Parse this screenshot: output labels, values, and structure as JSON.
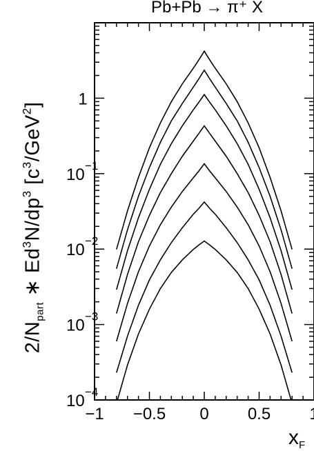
{
  "chart_data": {
    "type": "line",
    "title": "Pb+Pb → π⁺ X",
    "ylabel": {
      "prefix": "2/N",
      "sub": "part",
      "mid": " ∗ Ed",
      "sup3": "3",
      "mid2": "N/dp",
      "sup3b": "3",
      "units": "  [c",
      "sup_units": "3",
      "units_end": "/GeV",
      "sup_units2": "2",
      "close": "]"
    },
    "xlabel": {
      "main": "x",
      "sub": "F"
    },
    "xlim": [
      -1,
      1
    ],
    "ylim": [
      0.0001,
      10
    ],
    "yscale": "log",
    "x_ticks": [
      {
        "value": -1,
        "label": "−1"
      },
      {
        "value": -0.5,
        "label": "−0.5"
      },
      {
        "value": 0,
        "label": "0"
      },
      {
        "value": 0.5,
        "label": "0.5"
      },
      {
        "value": 1,
        "label": "1"
      }
    ],
    "y_ticks": [
      {
        "value": 0.0001,
        "base": "10",
        "exp": "−4"
      },
      {
        "value": 0.001,
        "base": "10",
        "exp": "−3"
      },
      {
        "value": 0.01,
        "base": "10",
        "exp": "−2"
      },
      {
        "value": 0.1,
        "base": "10",
        "exp": "−1"
      },
      {
        "value": 1,
        "base": "1",
        "exp": ""
      }
    ],
    "x": [
      -0.8,
      -0.7,
      -0.6,
      -0.5,
      -0.4,
      -0.3,
      -0.2,
      -0.1,
      -0.05,
      0,
      0.05,
      0.1,
      0.2,
      0.3,
      0.4,
      0.5,
      0.6,
      0.7,
      0.8
    ],
    "series": [
      {
        "values": [
          0.0099,
          0.032,
          0.089,
          0.22,
          0.47,
          0.9,
          1.55,
          2.5,
          3.2,
          4.2,
          3.2,
          2.5,
          1.55,
          0.9,
          0.47,
          0.22,
          0.089,
          0.032,
          0.0099
        ]
      },
      {
        "values": [
          0.0055,
          0.018,
          0.05,
          0.12,
          0.26,
          0.5,
          0.85,
          1.4,
          1.8,
          2.35,
          1.8,
          1.4,
          0.85,
          0.5,
          0.26,
          0.12,
          0.05,
          0.018,
          0.0055
        ]
      },
      {
        "values": [
          0.0029,
          0.0095,
          0.026,
          0.062,
          0.133,
          0.25,
          0.43,
          0.7,
          0.88,
          1.12,
          0.88,
          0.7,
          0.43,
          0.25,
          0.133,
          0.062,
          0.026,
          0.0095,
          0.0029
        ]
      },
      {
        "values": [
          0.0014,
          0.0046,
          0.0125,
          0.028,
          0.056,
          0.1,
          0.17,
          0.27,
          0.34,
          0.43,
          0.34,
          0.27,
          0.17,
          0.1,
          0.056,
          0.028,
          0.0125,
          0.0046,
          0.0014
        ]
      },
      {
        "values": [
          0.0006,
          0.0019,
          0.005,
          0.011,
          0.021,
          0.036,
          0.058,
          0.088,
          0.108,
          0.135,
          0.108,
          0.088,
          0.058,
          0.036,
          0.021,
          0.011,
          0.005,
          0.0019,
          0.0006
        ]
      },
      {
        "values": [
          0.00023,
          0.0007,
          0.0018,
          0.0039,
          0.0072,
          0.0122,
          0.0192,
          0.029,
          0.0345,
          0.042,
          0.0345,
          0.029,
          0.0192,
          0.0122,
          0.0072,
          0.0039,
          0.0018,
          0.0007,
          0.00023
        ]
      },
      {
        "values": [
          9e-05,
          0.00029,
          0.00075,
          0.0016,
          0.003,
          0.0049,
          0.0072,
          0.0099,
          0.0113,
          0.0128,
          0.0113,
          0.0099,
          0.0072,
          0.0049,
          0.003,
          0.0016,
          0.00075,
          0.00029,
          9e-05
        ]
      }
    ]
  }
}
